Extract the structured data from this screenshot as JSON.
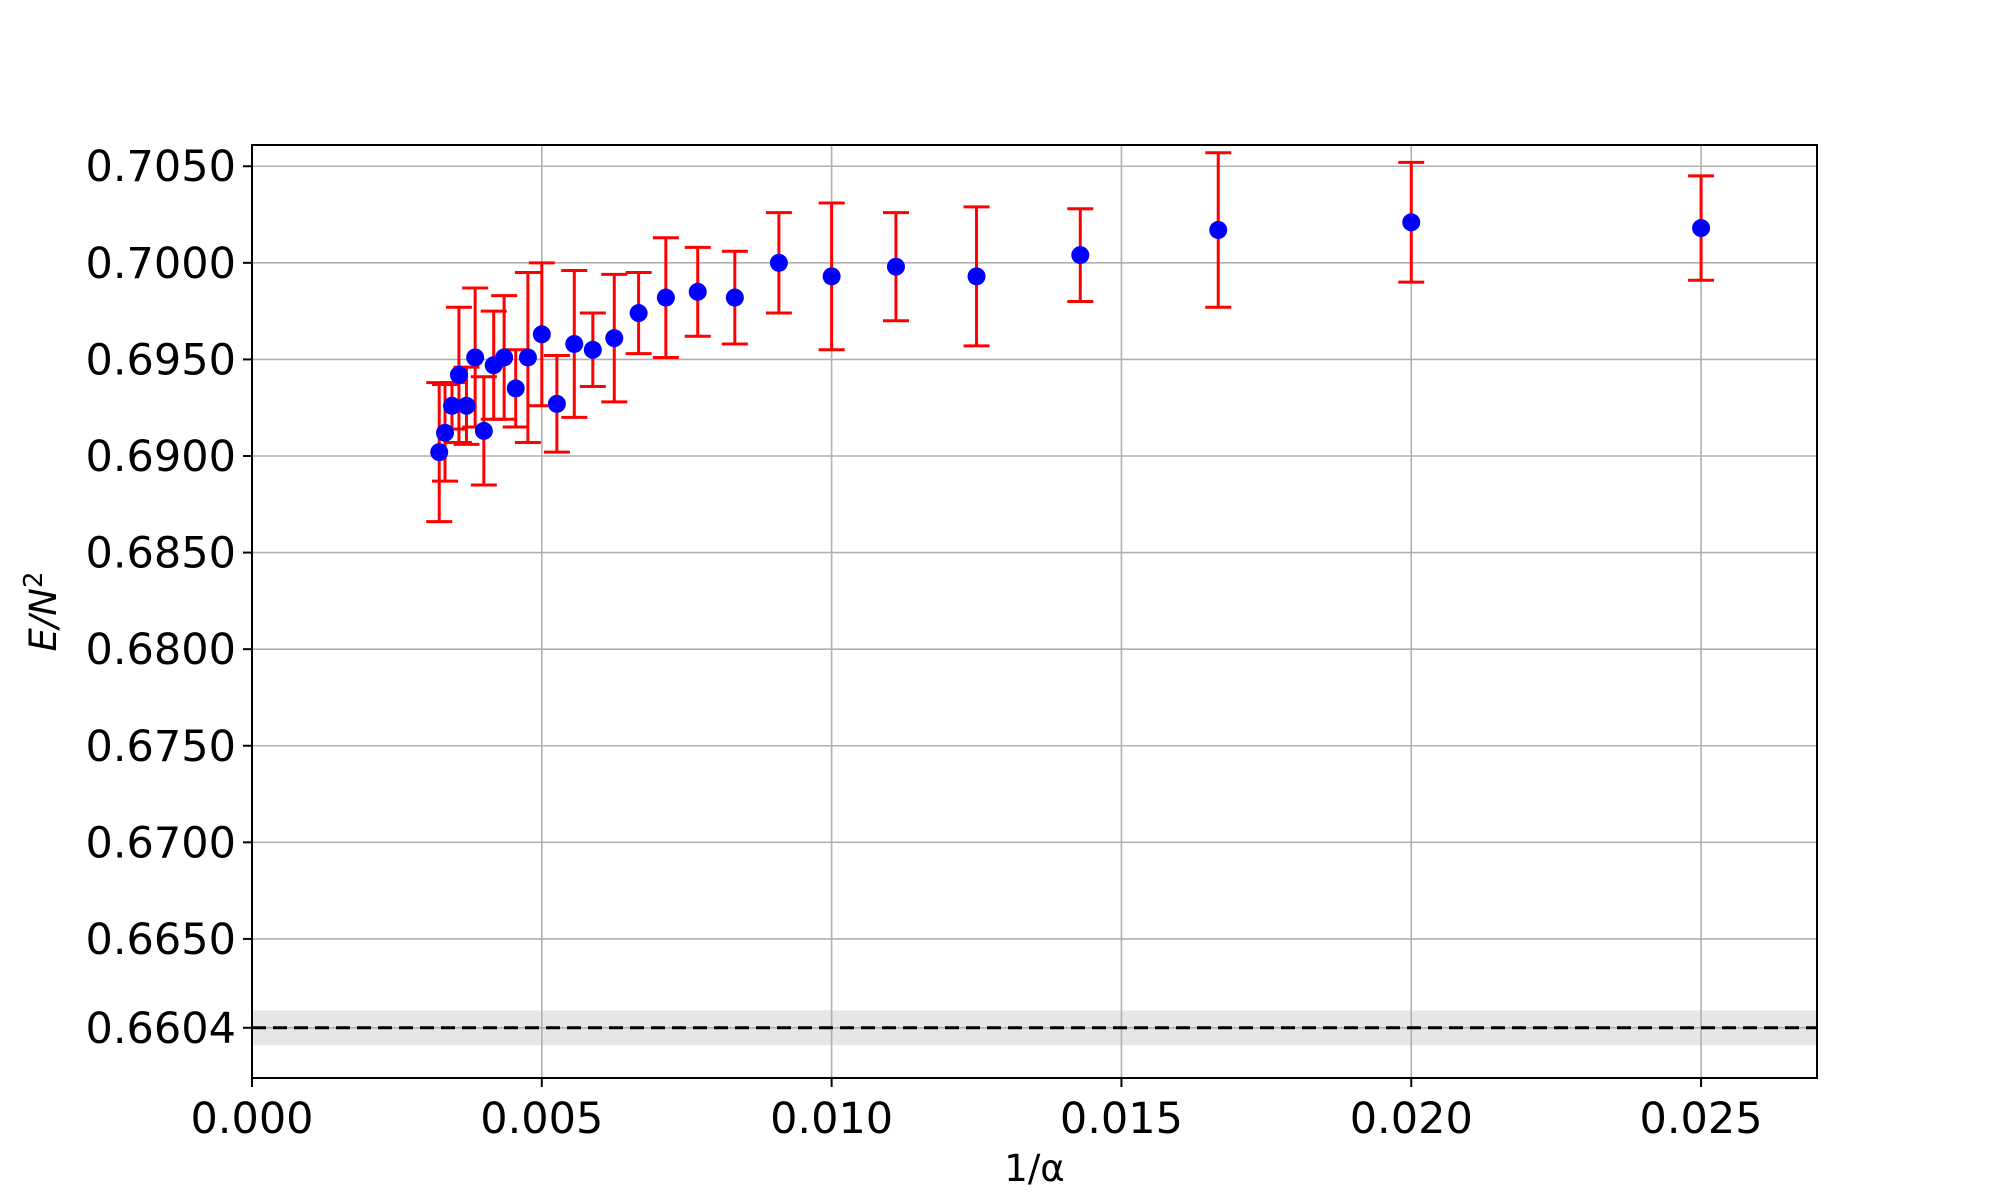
{
  "chart_data": {
    "type": "scatter",
    "title": "",
    "xlabel": "1/α",
    "ylabel": {
      "base": "E/N",
      "sup": "2"
    },
    "xlim": [
      0,
      0.027
    ],
    "ylim": [
      0.6578,
      0.7061
    ],
    "xticks": [
      0.0,
      0.005,
      0.01,
      0.015,
      0.02,
      0.025
    ],
    "xtick_labels": [
      "0.000",
      "0.005",
      "0.010",
      "0.015",
      "0.020",
      "0.025"
    ],
    "yticks": [
      0.6604,
      0.665,
      0.67,
      0.675,
      0.68,
      0.685,
      0.69,
      0.695,
      0.7,
      0.705
    ],
    "ytick_labels": [
      "0.6604",
      "0.6650",
      "0.6700",
      "0.6750",
      "0.6800",
      "0.6850",
      "0.6900",
      "0.6950",
      "0.7000",
      "0.7050"
    ],
    "grid": true,
    "reference_line": {
      "y": 0.6604,
      "band": [
        0.6595,
        0.6613
      ],
      "style": "dashed",
      "color": "#000000",
      "band_color": "#e6e6e6"
    },
    "series": [
      {
        "marker_color": "#0000ff",
        "errorbar_color": "#ff0000",
        "x": [
          0.00323,
          0.00333,
          0.00345,
          0.00357,
          0.0037,
          0.00385,
          0.004,
          0.00417,
          0.00435,
          0.00455,
          0.00476,
          0.005,
          0.00526,
          0.00556,
          0.00588,
          0.00625,
          0.00667,
          0.00714,
          0.00769,
          0.00833,
          0.00909,
          0.01,
          0.01111,
          0.0125,
          0.01429,
          0.01667,
          0.02,
          0.025
        ],
        "y": [
          0.6902,
          0.6912,
          0.6926,
          0.6942,
          0.6926,
          0.6951,
          0.6913,
          0.6947,
          0.6951,
          0.6935,
          0.6951,
          0.6963,
          0.6927,
          0.6958,
          0.6955,
          0.6961,
          0.6974,
          0.6982,
          0.6985,
          0.6982,
          0.7,
          0.6993,
          0.6998,
          0.6993,
          0.7004,
          0.7017,
          0.7021,
          0.7018
        ],
        "yerr": [
          0.0036,
          0.0025,
          0.0012,
          0.0035,
          0.002,
          0.0036,
          0.0028,
          0.0028,
          0.0032,
          0.002,
          0.0044,
          0.0037,
          0.0025,
          0.0038,
          0.0019,
          0.0033,
          0.0021,
          0.0031,
          0.0023,
          0.0024,
          0.0026,
          0.0038,
          0.0028,
          0.0036,
          0.0024,
          0.004,
          0.0031,
          0.0027
        ]
      }
    ]
  }
}
